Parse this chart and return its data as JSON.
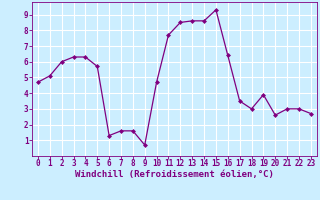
{
  "x": [
    0,
    1,
    2,
    3,
    4,
    5,
    6,
    7,
    8,
    9,
    10,
    11,
    12,
    13,
    14,
    15,
    16,
    17,
    18,
    19,
    20,
    21,
    22,
    23
  ],
  "y": [
    4.7,
    5.1,
    6.0,
    6.3,
    6.3,
    5.7,
    1.3,
    1.6,
    1.6,
    0.7,
    4.7,
    7.7,
    8.5,
    8.6,
    8.6,
    9.3,
    6.4,
    3.5,
    3.0,
    3.9,
    2.6,
    3.0,
    3.0,
    2.7
  ],
  "line_color": "#800080",
  "marker": "D",
  "marker_size": 2.0,
  "bg_color": "#cceeff",
  "grid_color": "#ffffff",
  "xlabel": "Windchill (Refroidissement éolien,°C)",
  "xlabel_color": "#800080",
  "tick_color": "#800080",
  "xlim": [
    -0.5,
    23.5
  ],
  "ylim": [
    0,
    9.8
  ],
  "yticks": [
    1,
    2,
    3,
    4,
    5,
    6,
    7,
    8,
    9
  ],
  "xticks": [
    0,
    1,
    2,
    3,
    4,
    5,
    6,
    7,
    8,
    9,
    10,
    11,
    12,
    13,
    14,
    15,
    16,
    17,
    18,
    19,
    20,
    21,
    22,
    23
  ],
  "axis_label_fontsize": 6.5,
  "tick_fontsize": 5.5,
  "linewidth": 0.9
}
